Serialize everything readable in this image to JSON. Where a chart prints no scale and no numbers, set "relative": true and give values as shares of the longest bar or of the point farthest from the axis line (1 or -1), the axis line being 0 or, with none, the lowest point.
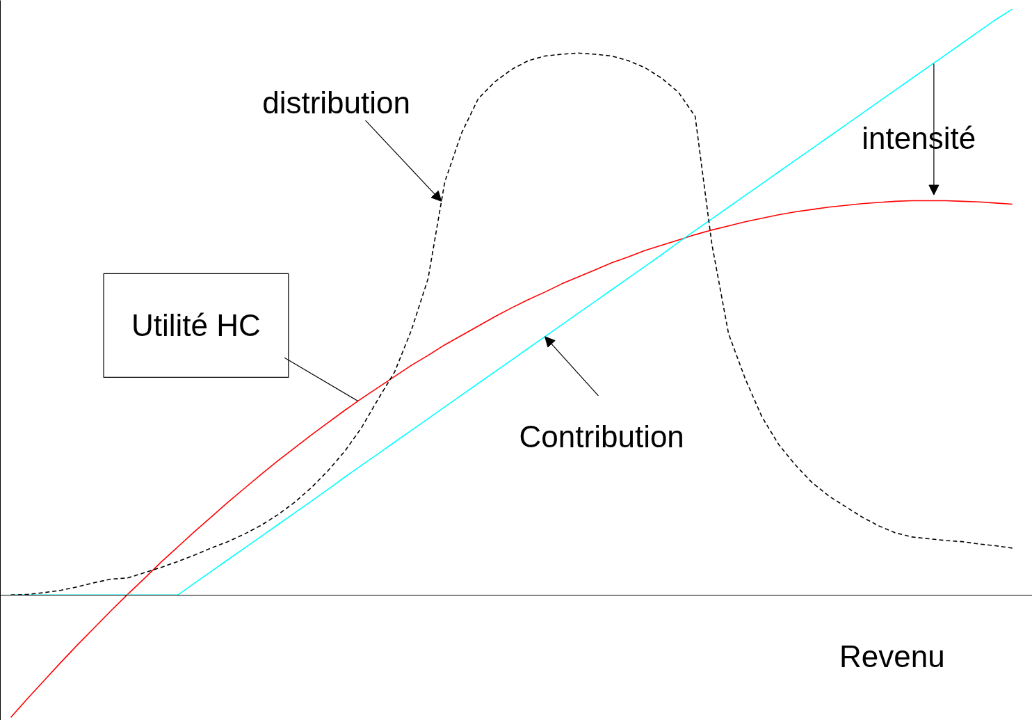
{
  "chart_data": {
    "type": "line",
    "relative": true,
    "xlabel": "Revenu",
    "legend": false,
    "grid": false,
    "categories": [
      null,
      null,
      null,
      null,
      null,
      null,
      null,
      null,
      null,
      null,
      null,
      null,
      null,
      null,
      null,
      null,
      null,
      null,
      null,
      null,
      null,
      null,
      null,
      null,
      null,
      null,
      null,
      null,
      null,
      null,
      null,
      null,
      null,
      null,
      null,
      null,
      null,
      null,
      null,
      null,
      null,
      null,
      null,
      null,
      null,
      null,
      null,
      null,
      null,
      null,
      null,
      null,
      null,
      null,
      null,
      null,
      null,
      null,
      null,
      null,
      null
    ],
    "series": [
      {
        "color": "#ff0000",
        "line_style": "solid",
        "values": [
          -0.209,
          -0.177,
          -0.146,
          -0.115,
          -0.085,
          -0.056,
          -0.027,
          0.001,
          0.028,
          0.056,
          0.082,
          0.108,
          0.133,
          0.158,
          0.182,
          0.206,
          0.229,
          0.251,
          0.273,
          0.294,
          0.315,
          0.335,
          0.354,
          0.373,
          0.392,
          0.409,
          0.427,
          0.443,
          0.459,
          0.475,
          0.49,
          0.504,
          0.517,
          0.531,
          0.543,
          0.555,
          0.567,
          0.577,
          0.588,
          0.597,
          0.606,
          0.615,
          0.623,
          0.63,
          0.637,
          0.643,
          0.649,
          0.654,
          0.658,
          0.662,
          0.665,
          0.668,
          0.67,
          0.672,
          0.673,
          0.673,
          0.673,
          0.672,
          0.671,
          0.669,
          0.667
        ]
      },
      {
        "color": "#00ffff",
        "line_style": "solid",
        "values": [
          0,
          0,
          0,
          0,
          0,
          0,
          0,
          0,
          0,
          0,
          0,
          0.02,
          0.04,
          0.06,
          0.08,
          0.1,
          0.12,
          0.14,
          0.16,
          0.18,
          0.201,
          0.221,
          0.241,
          0.261,
          0.281,
          0.301,
          0.321,
          0.341,
          0.361,
          0.381,
          0.401,
          0.421,
          0.441,
          0.461,
          0.481,
          0.501,
          0.521,
          0.541,
          0.561,
          0.581,
          0.602,
          0.622,
          0.642,
          0.662,
          0.682,
          0.702,
          0.722,
          0.742,
          0.762,
          0.782,
          0.802,
          0.822,
          0.842,
          0.862,
          0.882,
          0.902,
          0.922,
          0.942,
          0.962,
          0.982,
          1.0
        ]
      },
      {
        "color": "#000000",
        "line_style": "dashed",
        "values": [
          0,
          0.001,
          0.004,
          0.008,
          0.014,
          0.021,
          0.027,
          0.029,
          0.038,
          0.047,
          0.057,
          0.068,
          0.08,
          0.091,
          0.104,
          0.119,
          0.137,
          0.158,
          0.183,
          0.212,
          0.245,
          0.285,
          0.334,
          0.381,
          0.452,
          0.54,
          0.705,
          0.788,
          0.847,
          0.876,
          0.897,
          0.912,
          0.92,
          0.923,
          0.925,
          0.923,
          0.92,
          0.912,
          0.9,
          0.882,
          0.858,
          0.817,
          0.599,
          0.446,
          0.369,
          0.304,
          0.257,
          0.222,
          0.192,
          0.169,
          0.151,
          0.133,
          0.118,
          0.106,
          0.099,
          0.096,
          0.093,
          0.091,
          0.087,
          0.084,
          0.08
        ]
      }
    ],
    "annotations": [
      "Utilité HC",
      "Contribution",
      "distribution",
      "intensité"
    ]
  }
}
